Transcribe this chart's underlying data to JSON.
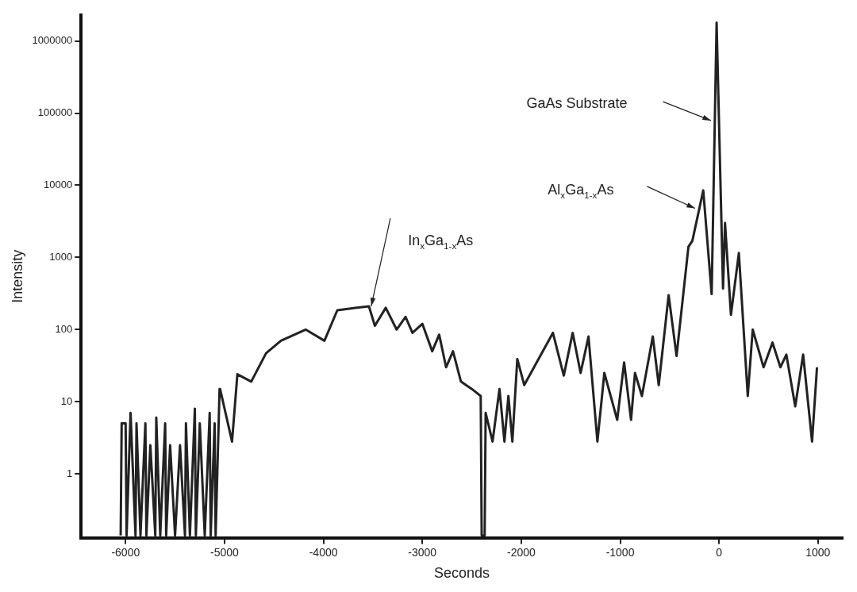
{
  "chart_data": {
    "type": "line",
    "xlabel": "Seconds",
    "ylabel": "Intensity",
    "log": "y",
    "grid": false,
    "legend": false,
    "marker": "none",
    "line_style": "solid",
    "xlim": [
      -6450,
      1250
    ],
    "xticks": [
      -6000,
      -5000,
      -4000,
      -3000,
      -2000,
      -1000,
      0,
      1000
    ],
    "ylim": [
      0.13,
      2300000
    ],
    "yticks": [
      1,
      10,
      100,
      1000,
      10000,
      100000,
      1000000
    ],
    "series": [
      {
        "color": "#222222",
        "x": [
          -6050,
          -6040,
          -6000,
          -5990,
          -5950,
          -5900,
          -5890,
          -5850,
          -5800,
          -5790,
          -5750,
          -5700,
          -5690,
          -5650,
          -5600,
          -5590,
          -5550,
          -5500,
          -5450,
          -5400,
          -5390,
          -5350,
          -5300,
          -5290,
          -5250,
          -5200,
          -5150,
          -5140,
          -5100,
          -5090,
          -5050,
          -5045,
          -4924,
          -4870,
          -4730,
          -4580,
          -4430,
          -4180,
          -3990,
          -3860,
          -3680,
          -3540,
          -3480,
          -3370,
          -3260,
          -3170,
          -3100,
          -3000,
          -2900,
          -2830,
          -2760,
          -2690,
          -2610,
          -2500,
          -2410,
          -2400,
          -2370,
          -2360,
          -2290,
          -2220,
          -2170,
          -2130,
          -2090,
          -2040,
          -1970,
          -1680,
          -1570,
          -1480,
          -1400,
          -1320,
          -1230,
          -1160,
          -1030,
          -960,
          -890,
          -850,
          -780,
          -670,
          -610,
          -510,
          -430,
          -310,
          -270,
          -160,
          -75,
          -25,
          40,
          60,
          120,
          200,
          290,
          340,
          450,
          540,
          620,
          680,
          770,
          850,
          940,
          990
        ],
        "values": [
          0.14,
          5,
          5,
          0.14,
          7,
          0.14,
          5,
          0.14,
          5,
          0.14,
          2.5,
          0.14,
          6,
          0.14,
          5,
          0.14,
          2.5,
          0.14,
          2.5,
          0.14,
          5,
          0.14,
          8,
          0.14,
          5,
          0.14,
          7,
          0.14,
          5,
          0.14,
          15,
          15,
          2.8,
          24,
          19,
          47,
          70,
          100,
          70,
          185,
          200,
          210,
          113,
          200,
          100,
          150,
          90,
          120,
          50,
          85,
          30,
          50,
          19,
          15,
          12,
          0.14,
          0.14,
          7,
          2.8,
          15,
          2.8,
          12,
          2.8,
          39,
          17,
          90,
          23,
          90,
          25,
          80,
          2.8,
          25,
          5.6,
          35,
          5.6,
          25,
          12,
          80,
          17,
          300,
          43,
          1400,
          1700,
          8500,
          310,
          1800000,
          370,
          3000,
          160,
          1150,
          12,
          100,
          30,
          66,
          30,
          45,
          8.6,
          45,
          2.8,
          30
        ]
      }
    ],
    "annotations": [
      "GaAs Substrate",
      "Al$_{x}$Ga$_{1-x}$As",
      "In$_{x}$Ga$_{1-x}$As"
    ]
  }
}
